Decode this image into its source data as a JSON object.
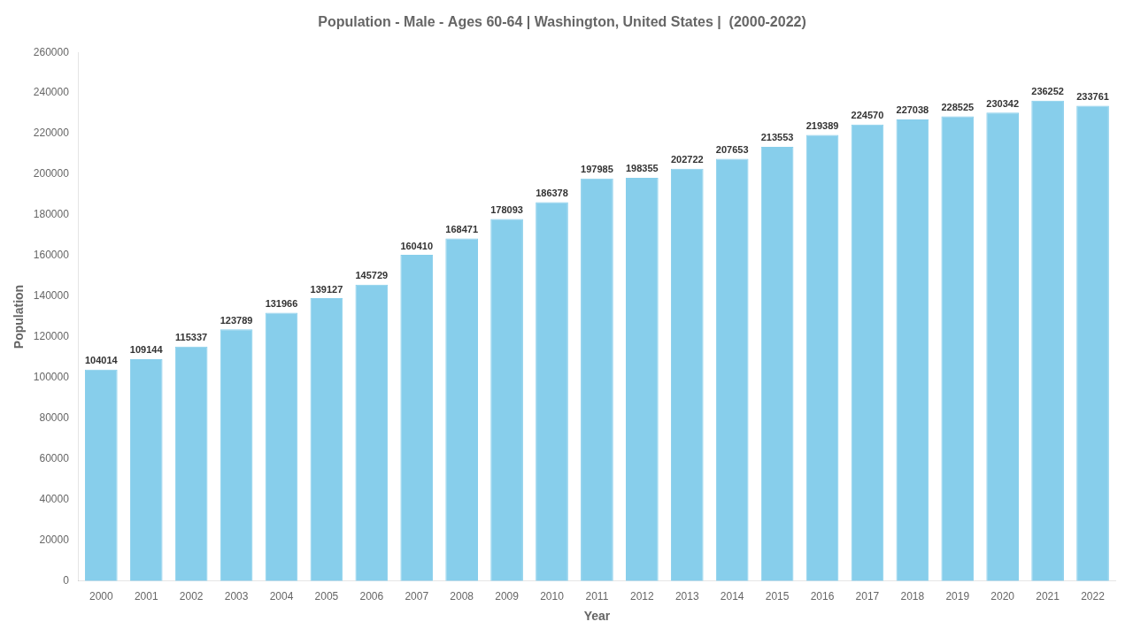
{
  "chart_data": {
    "type": "bar",
    "title": "Population - Male - Ages 60-64 | Washington, United States |  (2000-2022)",
    "x_label": "Year",
    "y_label": "Population",
    "categories": [
      "2000",
      "2001",
      "2002",
      "2003",
      "2004",
      "2005",
      "2006",
      "2007",
      "2008",
      "2009",
      "2010",
      "2011",
      "2012",
      "2013",
      "2014",
      "2015",
      "2016",
      "2017",
      "2018",
      "2019",
      "2020",
      "2021",
      "2022"
    ],
    "values": [
      104014,
      109144,
      115337,
      123789,
      131966,
      139127,
      145729,
      160410,
      168471,
      178093,
      186378,
      197985,
      198355,
      202722,
      207653,
      213553,
      219389,
      224570,
      227038,
      228525,
      230342,
      236252,
      233761
    ],
    "color": "#87CEEB",
    "ylim": [
      0,
      260000
    ],
    "yticks": [
      0,
      20000,
      40000,
      60000,
      80000,
      100000,
      120000,
      140000,
      160000,
      180000,
      200000,
      220000,
      240000,
      260000
    ],
    "grid": false,
    "data_labels": true
  }
}
